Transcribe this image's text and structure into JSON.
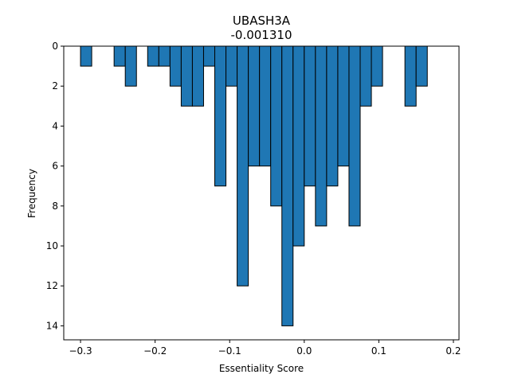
{
  "chart_data": {
    "type": "bar",
    "title": "UBASH3A",
    "subtitle": "-0.001310",
    "xlabel": "Essentiality Score",
    "ylabel": "Frequency",
    "xlim": [
      -0.3225,
      0.2075
    ],
    "ylim": [
      14.7,
      0
    ],
    "y_inverted": true,
    "bar_width": 0.015,
    "bar_color": "#1f77b4",
    "edge_color": "#000000",
    "x_ticks": [
      -0.3,
      -0.2,
      -0.1,
      0.0,
      0.1,
      0.2
    ],
    "x_tick_labels": [
      "−0.3",
      "−0.2",
      "−0.1",
      "0.0",
      "0.1",
      "0.2"
    ],
    "y_ticks": [
      0,
      2,
      4,
      6,
      8,
      10,
      12,
      14
    ],
    "y_tick_labels": [
      "0",
      "2",
      "4",
      "6",
      "8",
      "10",
      "12",
      "14"
    ],
    "bins": [
      {
        "x": -0.2925,
        "value": 1
      },
      {
        "x": -0.2475,
        "value": 1
      },
      {
        "x": -0.2325,
        "value": 2
      },
      {
        "x": -0.2025,
        "value": 1
      },
      {
        "x": -0.1875,
        "value": 1
      },
      {
        "x": -0.1725,
        "value": 2
      },
      {
        "x": -0.1575,
        "value": 3
      },
      {
        "x": -0.1425,
        "value": 3
      },
      {
        "x": -0.1275,
        "value": 1
      },
      {
        "x": -0.1125,
        "value": 7
      },
      {
        "x": -0.0975,
        "value": 2
      },
      {
        "x": -0.0825,
        "value": 12
      },
      {
        "x": -0.0675,
        "value": 6
      },
      {
        "x": -0.0525,
        "value": 6
      },
      {
        "x": -0.0375,
        "value": 8
      },
      {
        "x": -0.0225,
        "value": 14
      },
      {
        "x": -0.0075,
        "value": 10
      },
      {
        "x": 0.0075,
        "value": 7
      },
      {
        "x": 0.0225,
        "value": 9
      },
      {
        "x": 0.0375,
        "value": 7
      },
      {
        "x": 0.0525,
        "value": 6
      },
      {
        "x": 0.0675,
        "value": 9
      },
      {
        "x": 0.0825,
        "value": 3
      },
      {
        "x": 0.0975,
        "value": 2
      },
      {
        "x": 0.1425,
        "value": 3
      },
      {
        "x": 0.1575,
        "value": 2
      }
    ]
  }
}
